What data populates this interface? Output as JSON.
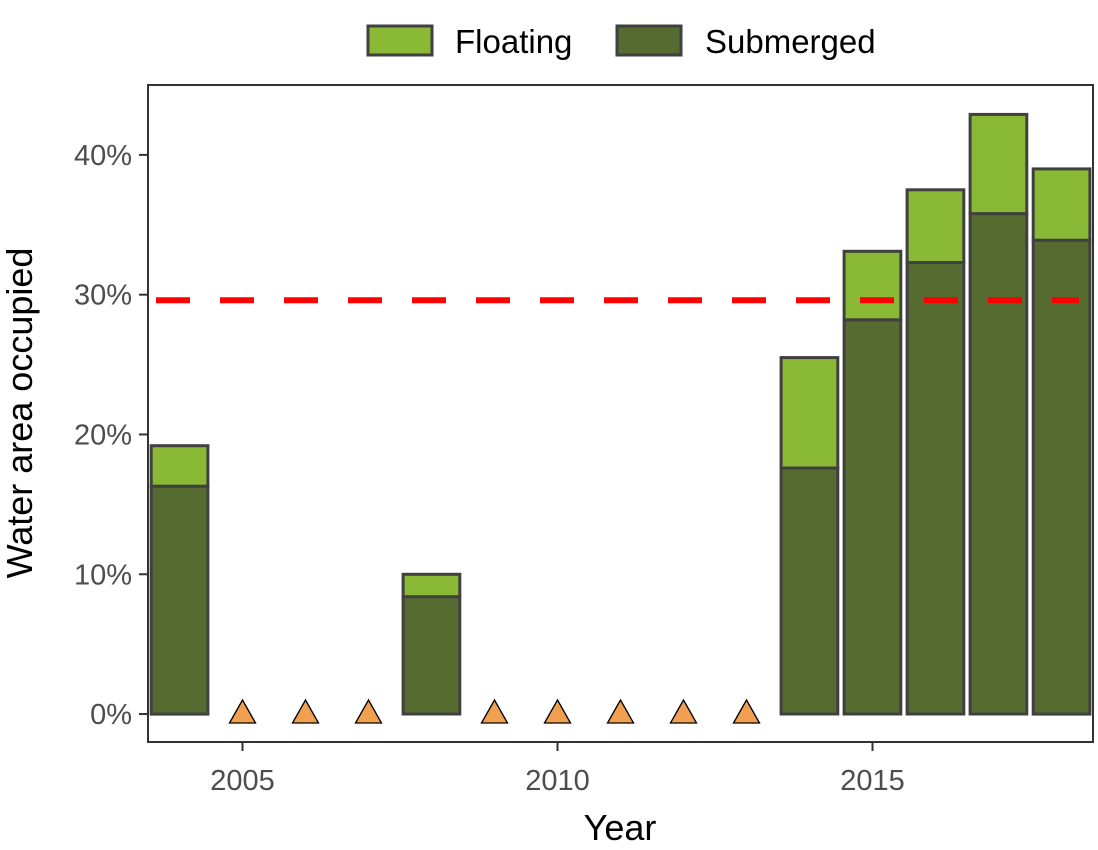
{
  "chart_data": {
    "type": "bar",
    "stacked": true,
    "xlabel": "Year",
    "ylabel": "Water area occupied",
    "x_ticks": [
      2005,
      2010,
      2015
    ],
    "y_ticks": [
      0,
      10,
      20,
      30,
      40
    ],
    "y_tick_labels": [
      "0%",
      "10%",
      "20%",
      "30%",
      "40%"
    ],
    "xlim": [
      2003.5,
      2018.5
    ],
    "ylim": [
      -2,
      45
    ],
    "grid": false,
    "legend_position": "top",
    "legend": [
      {
        "name": "Floating",
        "color": "#8ab935"
      },
      {
        "name": "Submerged",
        "color": "#556b2f"
      }
    ],
    "years": [
      2004,
      2008,
      2014,
      2015,
      2016,
      2017,
      2018
    ],
    "series": [
      {
        "name": "Submerged",
        "color": "#556b2f",
        "values": [
          16.3,
          8.4,
          17.6,
          28.2,
          32.3,
          35.8,
          33.9
        ]
      },
      {
        "name": "Floating",
        "color": "#8ab935",
        "values": [
          2.9,
          1.6,
          7.9,
          4.9,
          5.2,
          7.1,
          5.1
        ]
      }
    ],
    "reference_line": {
      "value": 29.6,
      "color": "#ff0000",
      "style": "dashed"
    },
    "no_data_years": [
      2005,
      2006,
      2007,
      2009,
      2010,
      2011,
      2012,
      2013
    ],
    "no_data_marker": {
      "shape": "triangle",
      "color": "#f0a050",
      "value": 0
    }
  }
}
